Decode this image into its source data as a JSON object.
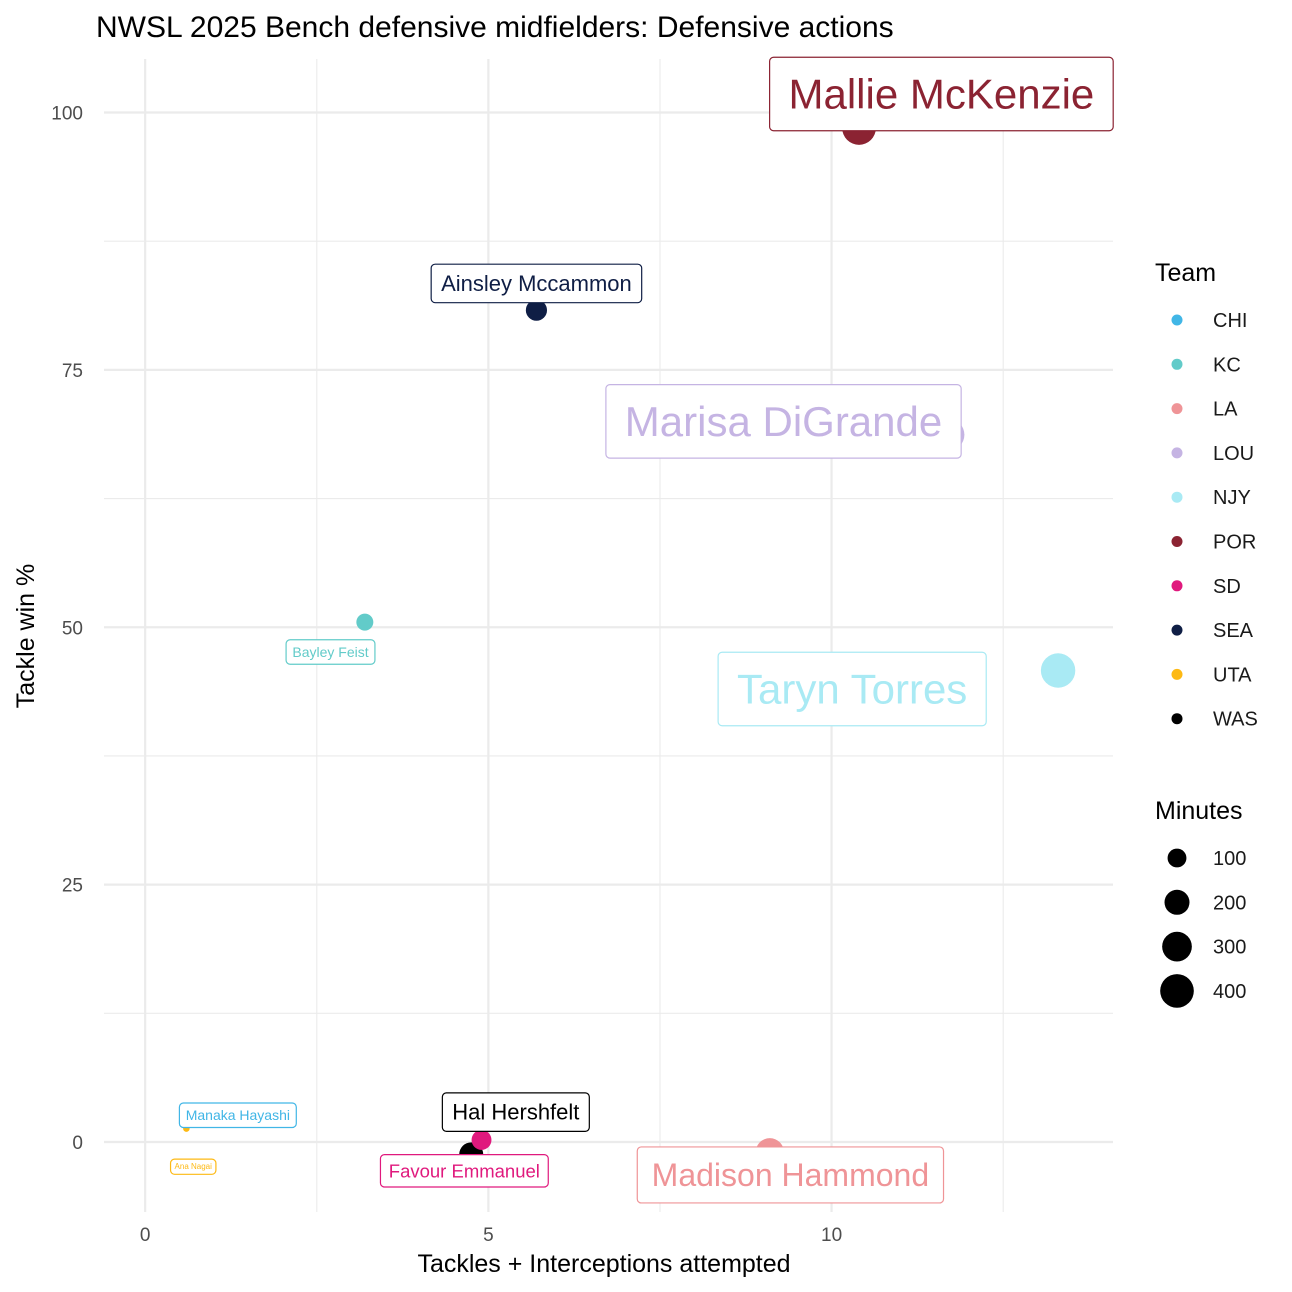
{
  "chart_data": {
    "type": "scatter",
    "title": "NWSL 2025 Bench defensive midfielders: Defensive actions",
    "xlabel": "Tackles + Interceptions attempted",
    "ylabel": "Tackle win %",
    "xlim": [
      -0.6,
      14.1
    ],
    "ylim": [
      -6.8,
      105.2
    ],
    "x_ticks": [
      0,
      5,
      10
    ],
    "y_ticks": [
      0,
      25,
      50,
      75,
      100
    ],
    "grid": true,
    "legend_position": "right",
    "color_legend": {
      "title": "Team",
      "entries": [
        {
          "label": "CHI",
          "color": "#41B6E6"
        },
        {
          "label": "KC",
          "color": "#62CBC9"
        },
        {
          "label": "LA",
          "color": "#EF9497"
        },
        {
          "label": "LOU",
          "color": "#C5B4E3"
        },
        {
          "label": "NJY",
          "color": "#A9EAF4"
        },
        {
          "label": "POR",
          "color": "#8B2332"
        },
        {
          "label": "SD",
          "color": "#E0197D"
        },
        {
          "label": "SEA",
          "color": "#0F1E45"
        },
        {
          "label": "UTA",
          "color": "#FDB913"
        },
        {
          "label": "WAS",
          "color": "#000000"
        }
      ]
    },
    "size_legend": {
      "title": "Minutes",
      "entries": [
        {
          "label": "100",
          "value": 100
        },
        {
          "label": "200",
          "value": 200
        },
        {
          "label": "300",
          "value": 300
        },
        {
          "label": "400",
          "value": 400
        }
      ]
    },
    "points": [
      {
        "name": "Mallie McKenzie",
        "team": "POR",
        "x": 10.4,
        "y": 98.5,
        "minutes": 420
      },
      {
        "name": "Ainsley Mccammon",
        "team": "SEA",
        "x": 5.7,
        "y": 80.8,
        "minutes": 140
      },
      {
        "name": "Marisa DiGrande",
        "team": "LOU",
        "x": 11.7,
        "y": 68.7,
        "minutes": 380
      },
      {
        "name": "Bayley Feist",
        "team": "KC",
        "x": 3.2,
        "y": 50.5,
        "minutes": 80
      },
      {
        "name": "Taryn Torres",
        "team": "NJY",
        "x": 13.3,
        "y": 45.8,
        "minutes": 440
      },
      {
        "name": "Manaka Hayashi",
        "team": "CHI",
        "x": 0.6,
        "y": 1.6,
        "minutes": 5
      },
      {
        "name": "Ana Nagai",
        "team": "UTA",
        "x": 0.6,
        "y": 1.3,
        "minutes": 3
      },
      {
        "name": "Hal Hershfelt",
        "team": "WAS",
        "x": 4.75,
        "y": -1.2,
        "minutes": 190
      },
      {
        "name": "Favour Emmanuel",
        "team": "SD",
        "x": 4.9,
        "y": 0.2,
        "minutes": 120
      },
      {
        "name": "Madison Hammond",
        "team": "LA",
        "x": 9.1,
        "y": -1.0,
        "minutes": 280
      }
    ],
    "labels": [
      {
        "text": "Mallie McKenzie",
        "team": "POR",
        "x": 11.6,
        "y": 101.8,
        "size": "xl"
      },
      {
        "text": "Ainsley Mccammon",
        "team": "SEA",
        "x": 5.7,
        "y": 83.4,
        "size": "m"
      },
      {
        "text": "Marisa DiGrande",
        "team": "LOU",
        "x": 9.3,
        "y": 70.0,
        "size": "xl"
      },
      {
        "text": "Bayley Feist",
        "team": "KC",
        "x": 2.7,
        "y": 47.6,
        "size": "s"
      },
      {
        "text": "Taryn Torres",
        "team": "NJY",
        "x": 10.3,
        "y": 44.0,
        "size": "xl"
      },
      {
        "text": "Manaka Hayashi",
        "team": "CHI",
        "x": 1.35,
        "y": 2.6,
        "size": "s"
      },
      {
        "text": "Ana Nagai",
        "team": "UTA",
        "x": 0.7,
        "y": -2.4,
        "size": "xs"
      },
      {
        "text": "Hal Hershfelt",
        "team": "WAS",
        "x": 5.4,
        "y": 2.9,
        "size": "m"
      },
      {
        "text": "Favour Emmanuel",
        "team": "SD",
        "x": 4.65,
        "y": -2.8,
        "size": "s2"
      },
      {
        "text": "Madison Hammond",
        "team": "LA",
        "x": 9.4,
        "y": -3.2,
        "size": "l"
      }
    ]
  }
}
